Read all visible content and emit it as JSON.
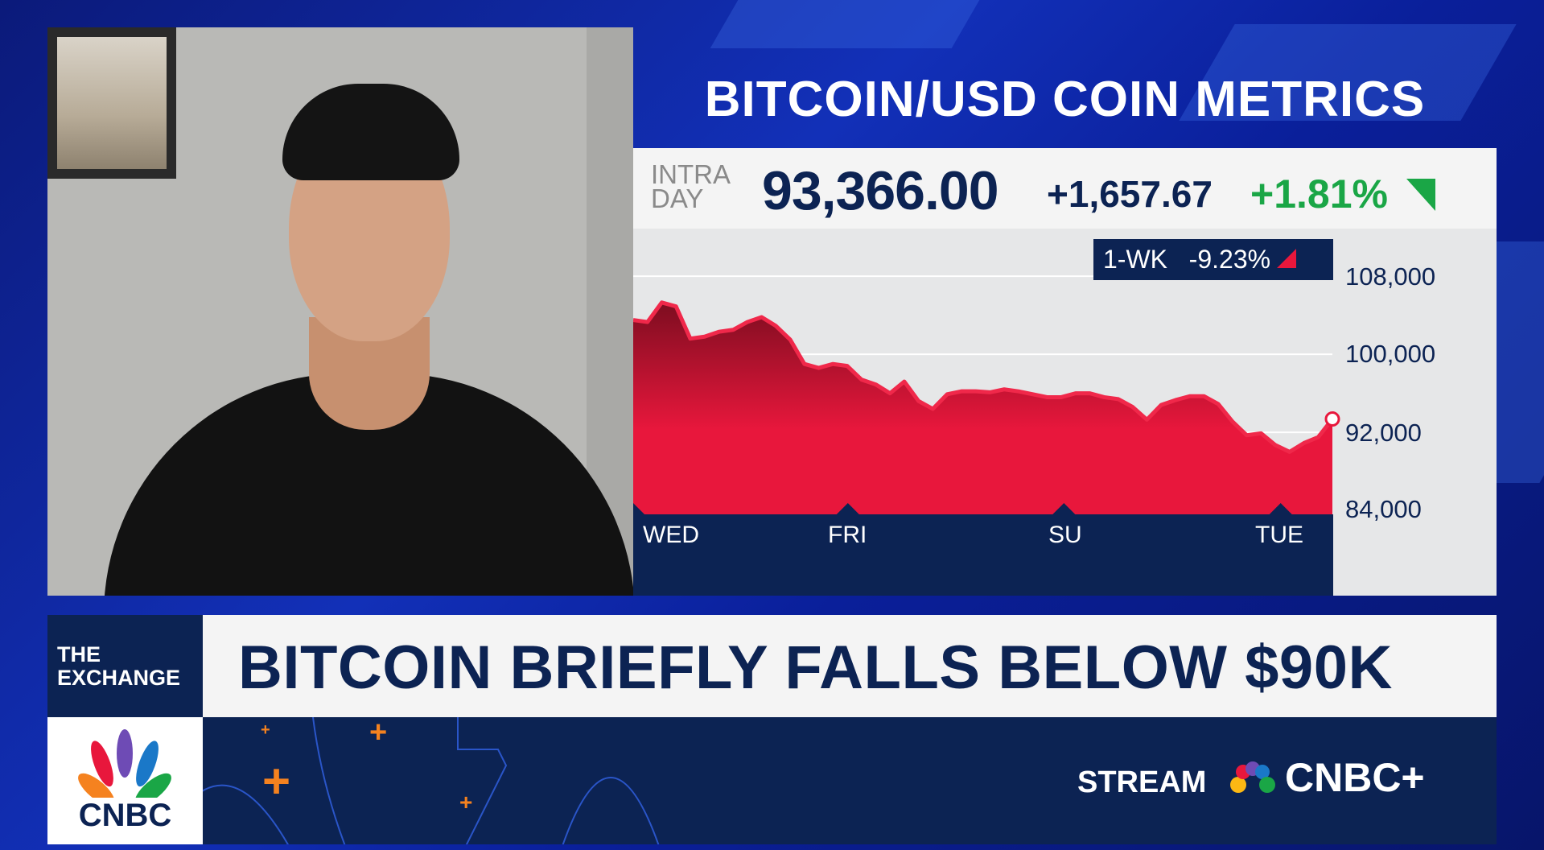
{
  "title": "BITCOIN/USD COIN METRICS",
  "quote": {
    "label_line1": "INTRA",
    "label_line2": "DAY",
    "price": "93,366.00",
    "change": "+1,657.67",
    "change_pct": "+1.81%",
    "direction": "up"
  },
  "badge": {
    "period": "1-WK",
    "change": "-9.23%",
    "direction": "down"
  },
  "colors": {
    "navy": "#0c2353",
    "up_green": "#1aa646",
    "down_red": "#e8173c",
    "background_blue": "#0a1a86",
    "logo_orange": "#f5821f"
  },
  "chart_data": {
    "type": "area",
    "title": "",
    "x_ticks": [
      "WED",
      "FRI",
      "SU",
      "TUE"
    ],
    "y_ticks": [
      108000,
      100000,
      92000,
      84000
    ],
    "y_tick_labels": [
      "108,000",
      "100,000",
      "92,000",
      "84,000"
    ],
    "ylim": [
      83600,
      112870
    ],
    "grid": true,
    "last_value": 93366,
    "values": [
      103500,
      103300,
      105300,
      104900,
      101600,
      101800,
      102300,
      102500,
      103300,
      103800,
      102900,
      101500,
      99000,
      98600,
      99000,
      98800,
      97400,
      96900,
      96000,
      97200,
      95200,
      94400,
      95900,
      96200,
      96200,
      96100,
      96400,
      96200,
      95900,
      95600,
      95600,
      96000,
      96000,
      95600,
      95400,
      94600,
      93300,
      94800,
      95300,
      95700,
      95700,
      94900,
      93100,
      91700,
      91900,
      90700,
      90000,
      90900,
      91500,
      93366
    ]
  },
  "lower_third": {
    "show_line1": "THE",
    "show_line2": "EXCHANGE",
    "headline": "BITCOIN BRIEFLY FALLS BELOW $90K",
    "network": "CNBC",
    "stream_label": "STREAM",
    "stream_brand": "CNBC+"
  }
}
